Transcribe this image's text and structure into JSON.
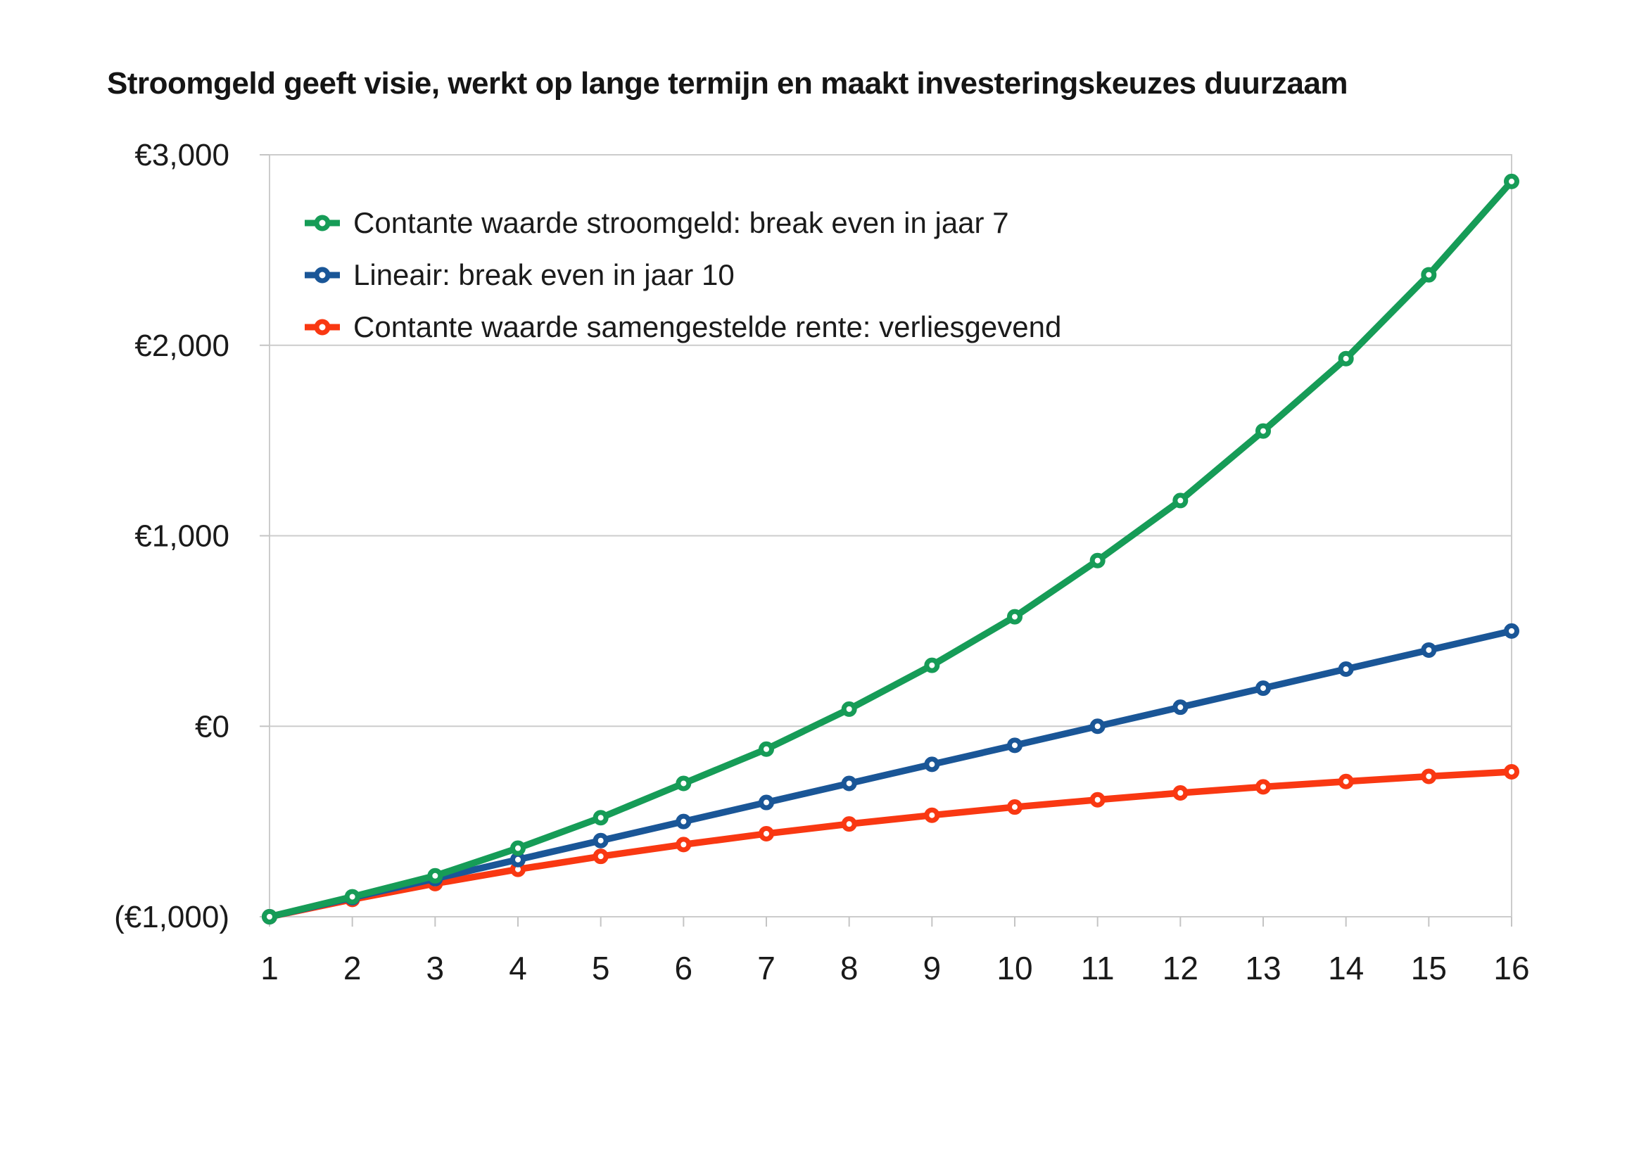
{
  "title": "Stroomgeld geeft visie, werkt op lange termijn en maakt investeringskeuzes duurzaam",
  "colors": {
    "background": "#ffffff",
    "grid": "#cccccc",
    "tick": "#c4c4c4",
    "text": "#1a1a1a",
    "marker_fill": "#ffffff"
  },
  "chart_data": {
    "type": "line",
    "title": "Stroomgeld geeft visie, werkt op lange termijn en maakt investeringskeuzes duurzaam",
    "x": [
      1,
      2,
      3,
      4,
      5,
      6,
      7,
      8,
      9,
      10,
      11,
      12,
      13,
      14,
      15,
      16
    ],
    "xlabel": "",
    "ylabel": "",
    "ylim": [
      -1000,
      3000
    ],
    "ytick_values": [
      3000,
      2000,
      1000,
      0,
      -1000
    ],
    "ytick_labels": [
      "€3,000",
      "€2,000",
      "€1,000",
      "€0",
      "(€1,000)"
    ],
    "grid": "horizontal-only",
    "legend_position": "inside-top-left",
    "marker": "open-circle",
    "series": [
      {
        "name": "Contante waarde stroomgeld: break even in jaar 7",
        "color": "#169C57",
        "values": [
          -1000,
          -895,
          -785,
          -640,
          -480,
          -300,
          -120,
          90,
          320,
          575,
          870,
          1185,
          1550,
          1930,
          2370,
          2860
        ]
      },
      {
        "name": "Lineair: break even in jaar 10",
        "color": "#1A5697",
        "values": [
          -1000,
          -900,
          -800,
          -700,
          -600,
          -500,
          -400,
          -300,
          -200,
          -100,
          0,
          100,
          200,
          300,
          400,
          500
        ]
      },
      {
        "name": "Contante waarde samengestelde rente: verliesgevend",
        "color": "#F93812",
        "values": [
          -1000,
          -909,
          -826,
          -751,
          -683,
          -621,
          -564,
          -513,
          -467,
          -424,
          -386,
          -350,
          -318,
          -290,
          -263,
          -239
        ]
      }
    ]
  }
}
